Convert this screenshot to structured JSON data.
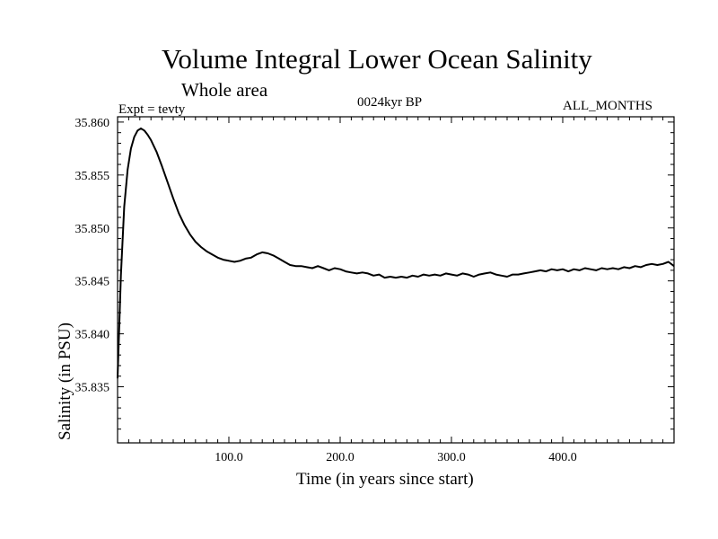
{
  "chart_data": {
    "type": "line",
    "title": "Volume Integral Lower Ocean Salinity",
    "subtitle": "Whole area",
    "annotations": {
      "expt": "Expt = tevty",
      "period": "0024kyr BP",
      "months": "ALL_MONTHS"
    },
    "xlabel": "Time (in years since start)",
    "ylabel": "Salinity (in PSU)",
    "xlim": [
      0,
      500
    ],
    "ylim": [
      35.8297,
      35.8605
    ],
    "x_ticks": [
      100,
      200,
      300,
      400
    ],
    "x_tick_labels": [
      "100.0",
      "200.0",
      "300.0",
      "400.0"
    ],
    "y_ticks": [
      35.835,
      35.84,
      35.845,
      35.85,
      35.855,
      35.86
    ],
    "y_tick_labels": [
      "35.835",
      "35.840",
      "35.845",
      "35.850",
      "35.855",
      "35.860"
    ],
    "grid": false,
    "series": [
      {
        "color": "#000000",
        "x": [
          0,
          3,
          6,
          9,
          12,
          15,
          18,
          21,
          24,
          27,
          30,
          35,
          40,
          45,
          50,
          55,
          60,
          65,
          70,
          75,
          80,
          85,
          90,
          95,
          100,
          105,
          110,
          115,
          120,
          125,
          130,
          135,
          140,
          145,
          150,
          155,
          160,
          165,
          170,
          175,
          180,
          185,
          190,
          195,
          200,
          205,
          210,
          215,
          220,
          225,
          230,
          235,
          240,
          245,
          250,
          255,
          260,
          265,
          270,
          275,
          280,
          285,
          290,
          295,
          300,
          305,
          310,
          315,
          320,
          325,
          330,
          335,
          340,
          345,
          350,
          355,
          360,
          365,
          370,
          375,
          380,
          385,
          390,
          395,
          400,
          405,
          410,
          415,
          420,
          425,
          430,
          435,
          440,
          445,
          450,
          455,
          460,
          465,
          470,
          475,
          480,
          485,
          490,
          495,
          500
        ],
        "y": [
          35.8358,
          35.8455,
          35.852,
          35.8555,
          35.8575,
          35.8586,
          35.8592,
          35.8594,
          35.8592,
          35.8588,
          35.8583,
          35.8572,
          35.8558,
          35.8543,
          35.8528,
          35.8514,
          35.8503,
          35.8494,
          35.8487,
          35.8482,
          35.8478,
          35.8475,
          35.8472,
          35.847,
          35.8469,
          35.8468,
          35.8469,
          35.8471,
          35.8472,
          35.8475,
          35.8477,
          35.8476,
          35.8474,
          35.8471,
          35.8468,
          35.8465,
          35.8464,
          35.8464,
          35.8463,
          35.8462,
          35.8464,
          35.8462,
          35.846,
          35.8462,
          35.8461,
          35.8459,
          35.8458,
          35.8457,
          35.8458,
          35.8457,
          35.8455,
          35.8456,
          35.8453,
          35.8454,
          35.8453,
          35.8454,
          35.8453,
          35.8455,
          35.8454,
          35.8456,
          35.8455,
          35.8456,
          35.8455,
          35.8457,
          35.8456,
          35.8455,
          35.8457,
          35.8456,
          35.8454,
          35.8456,
          35.8457,
          35.8458,
          35.8456,
          35.8455,
          35.8454,
          35.8456,
          35.8456,
          35.8457,
          35.8458,
          35.8459,
          35.846,
          35.8459,
          35.8461,
          35.846,
          35.8461,
          35.8459,
          35.8461,
          35.846,
          35.8462,
          35.8461,
          35.846,
          35.8462,
          35.8461,
          35.8462,
          35.8461,
          35.8463,
          35.8462,
          35.8464,
          35.8463,
          35.8465,
          35.8466,
          35.8465,
          35.8466,
          35.8468,
          35.8464
        ]
      }
    ]
  }
}
